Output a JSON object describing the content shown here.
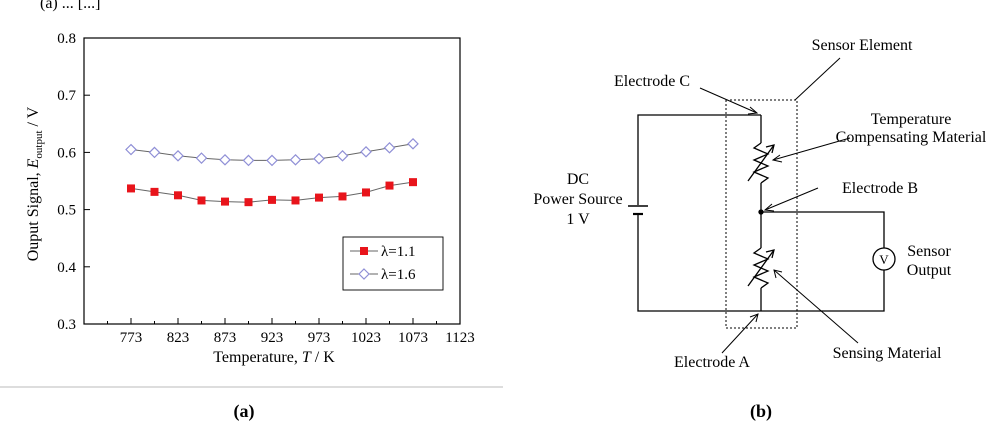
{
  "header": {
    "text": "(a) ... [...]"
  },
  "panel_a": {
    "label": "(a)",
    "chart_data": {
      "type": "line",
      "title": "",
      "xlabel_prefix": "Temperature, ",
      "xlabel_var": "T",
      "xlabel_suffix": " / K",
      "ylabel_prefix": "Ouput Signal, ",
      "ylabel_var": "E",
      "ylabel_sub": "output",
      "ylabel_suffix": " / V",
      "xlim": [
        723,
        1123
      ],
      "ylim": [
        0.3,
        0.8
      ],
      "x_ticks": [
        "773",
        "823",
        "873",
        "923",
        "973",
        "1023",
        "1073",
        "1123"
      ],
      "x_tick_values": [
        773,
        823,
        873,
        923,
        973,
        1023,
        1073,
        1123
      ],
      "y_ticks": [
        "0.3",
        "0.4",
        "0.5",
        "0.6",
        "0.7",
        "0.8"
      ],
      "y_tick_values": [
        0.3,
        0.4,
        0.5,
        0.6,
        0.7,
        0.8
      ],
      "x": [
        773,
        798,
        823,
        848,
        873,
        898,
        923,
        948,
        973,
        998,
        1023,
        1048,
        1073
      ],
      "series": [
        {
          "name": "λ=1.1",
          "marker": "square",
          "color": "#e8141b",
          "values": [
            0.537,
            0.531,
            0.525,
            0.516,
            0.514,
            0.513,
            0.517,
            0.516,
            0.521,
            0.523,
            0.53,
            0.542,
            0.548
          ]
        },
        {
          "name": "λ=1.6",
          "marker": "diamond",
          "color": "#8f8fd6",
          "values": [
            0.605,
            0.6,
            0.594,
            0.59,
            0.587,
            0.586,
            0.586,
            0.587,
            0.589,
            0.594,
            0.601,
            0.608,
            0.615
          ]
        }
      ],
      "legend_position": "lower-right",
      "grid": false
    }
  },
  "panel_b": {
    "label": "(b)",
    "labels": {
      "sensor_element": "Sensor Element",
      "electrode_c": "Electrode C",
      "temp_comp_line1": "Temperature",
      "temp_comp_line2": "Compensating Material",
      "dc_line1": "DC",
      "dc_line2": "Power Source",
      "dc_line3": "1 V",
      "electrode_b": "Electrode B",
      "sensor_output_line1": "Sensor",
      "sensor_output_line2": "Output",
      "voltmeter_symbol": "V",
      "sensing_material": "Sensing Material",
      "electrode_a": "Electrode A"
    }
  },
  "colors": {
    "axis": "#000000",
    "wire": "#000000",
    "line": "#666666",
    "divider": "#bbbbbb"
  }
}
